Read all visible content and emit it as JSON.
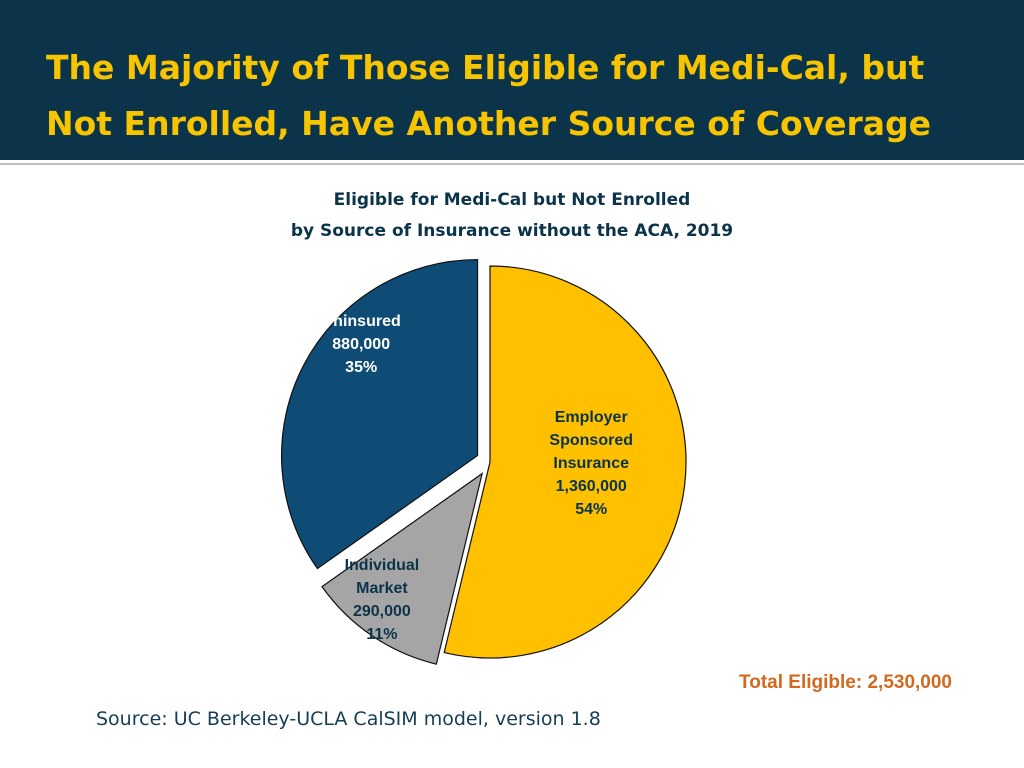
{
  "slide": {
    "title": "The Majority of Those Eligible for Medi-Cal, but\nNot Enrolled, Have Another Source of Coverage"
  },
  "chart_data": {
    "type": "pie",
    "title_line1": "Eligible for Medi-Cal but Not Enrolled",
    "title_line2": "by Source of Insurance without the ACA, 2019",
    "slices": [
      {
        "label": [
          "Employer",
          "Sponsored",
          "Insurance"
        ],
        "value": 1360000,
        "value_label": "1,360,000",
        "percent": 54,
        "percent_label": "54%",
        "color": "#ffc000",
        "label_color": "#0b3349",
        "exploded": false
      },
      {
        "label": [
          "Individual",
          "Market"
        ],
        "value": 290000,
        "value_label": "290,000",
        "percent": 11,
        "percent_label": "11%",
        "color": "#a5a5a5",
        "label_color": "#0b3349",
        "exploded": true
      },
      {
        "label": [
          "Uninsured"
        ],
        "value": 880000,
        "value_label": "880,000",
        "percent": 35,
        "percent_label": "35%",
        "color": "#0f4c75",
        "label_color": "#ffffff",
        "exploded": true
      }
    ],
    "total_text": "Total Eligible: 2,530,000"
  },
  "source": "Source: UC Berkeley-UCLA CalSIM model, version 1.8",
  "colors": {
    "header_bg": "#0b3349",
    "title": "#f6c400",
    "total": "#d2691e",
    "text": "#0b3349"
  }
}
